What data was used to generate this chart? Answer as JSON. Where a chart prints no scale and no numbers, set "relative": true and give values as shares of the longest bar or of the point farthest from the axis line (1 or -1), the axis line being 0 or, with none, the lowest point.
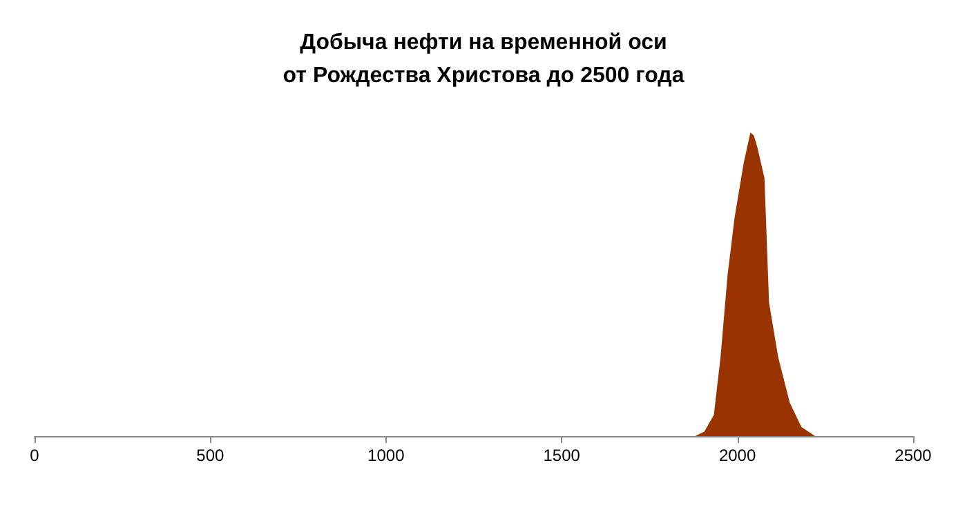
{
  "chart_data": {
    "type": "area",
    "title": "Добыча нефти на временной оси\nот Рождества Христова до 2500 года",
    "relative": true,
    "x": [
      0,
      1880,
      1906,
      1933,
      1952,
      1972,
      1992,
      2018,
      2037,
      2047,
      2057,
      2077,
      2090,
      2116,
      2149,
      2182,
      2221,
      2500
    ],
    "series": [
      {
        "color": "#993300",
        "values": [
          0,
          0,
          0.015,
          0.07,
          0.26,
          0.53,
          0.72,
          0.9,
          1,
          0.99,
          0.95,
          0.85,
          0.44,
          0.26,
          0.11,
          0.03,
          0,
          0
        ]
      }
    ],
    "xlim": [
      0,
      2500
    ],
    "xticks": [
      0,
      500,
      1000,
      1500,
      2000,
      2500
    ],
    "grid": false
  }
}
